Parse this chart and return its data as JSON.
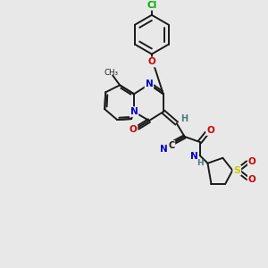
{
  "background_color": "#e8e8e8",
  "bond_color": "#1a1a1a",
  "atom_colors": {
    "N": "#0000cc",
    "O": "#cc0000",
    "S": "#cccc00",
    "Cl": "#00aa00",
    "C": "#1a1a1a",
    "H": "#4a7a7a"
  },
  "lw": 1.4,
  "fontsize": 7.5
}
